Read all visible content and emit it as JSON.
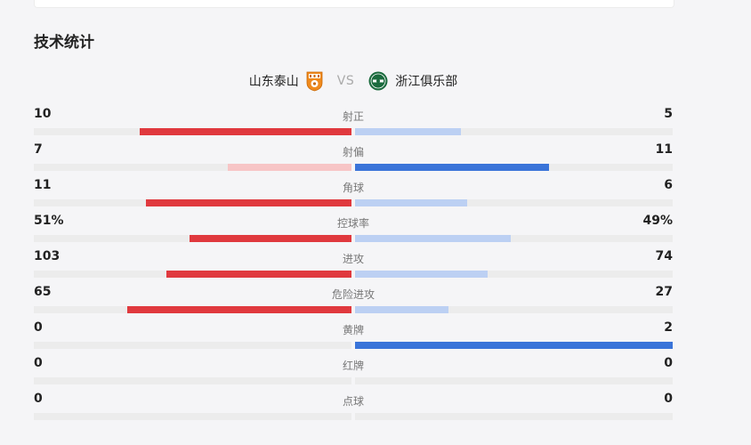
{
  "section": {
    "title": "技术统计"
  },
  "teams": {
    "home": {
      "name": "山东泰山",
      "logo_icon": "shandong-taishan-crest-icon"
    },
    "vs": "VS",
    "away": {
      "name": "浙江俱乐部",
      "logo_icon": "zhejiang-club-crest-icon"
    }
  },
  "colors": {
    "home_leading": "#e0393e",
    "home_trailing": "#f7c5c6",
    "away_leading": "#3a74d9",
    "away_trailing": "#bcd0f3",
    "track": "#ececec"
  },
  "stats": [
    {
      "label": "射正",
      "home": "10",
      "away": "5",
      "home_value": 10,
      "away_value": 5
    },
    {
      "label": "射偏",
      "home": "7",
      "away": "11",
      "home_value": 7,
      "away_value": 11
    },
    {
      "label": "角球",
      "home": "11",
      "away": "6",
      "home_value": 11,
      "away_value": 6
    },
    {
      "label": "控球率",
      "home": "51%",
      "away": "49%",
      "home_value": 51,
      "away_value": 49
    },
    {
      "label": "进攻",
      "home": "103",
      "away": "74",
      "home_value": 103,
      "away_value": 74
    },
    {
      "label": "危险进攻",
      "home": "65",
      "away": "27",
      "home_value": 65,
      "away_value": 27
    },
    {
      "label": "黄牌",
      "home": "0",
      "away": "2",
      "home_value": 0,
      "away_value": 2
    },
    {
      "label": "红牌",
      "home": "0",
      "away": "0",
      "home_value": 0,
      "away_value": 0
    },
    {
      "label": "点球",
      "home": "0",
      "away": "0",
      "home_value": 0,
      "away_value": 0
    }
  ]
}
